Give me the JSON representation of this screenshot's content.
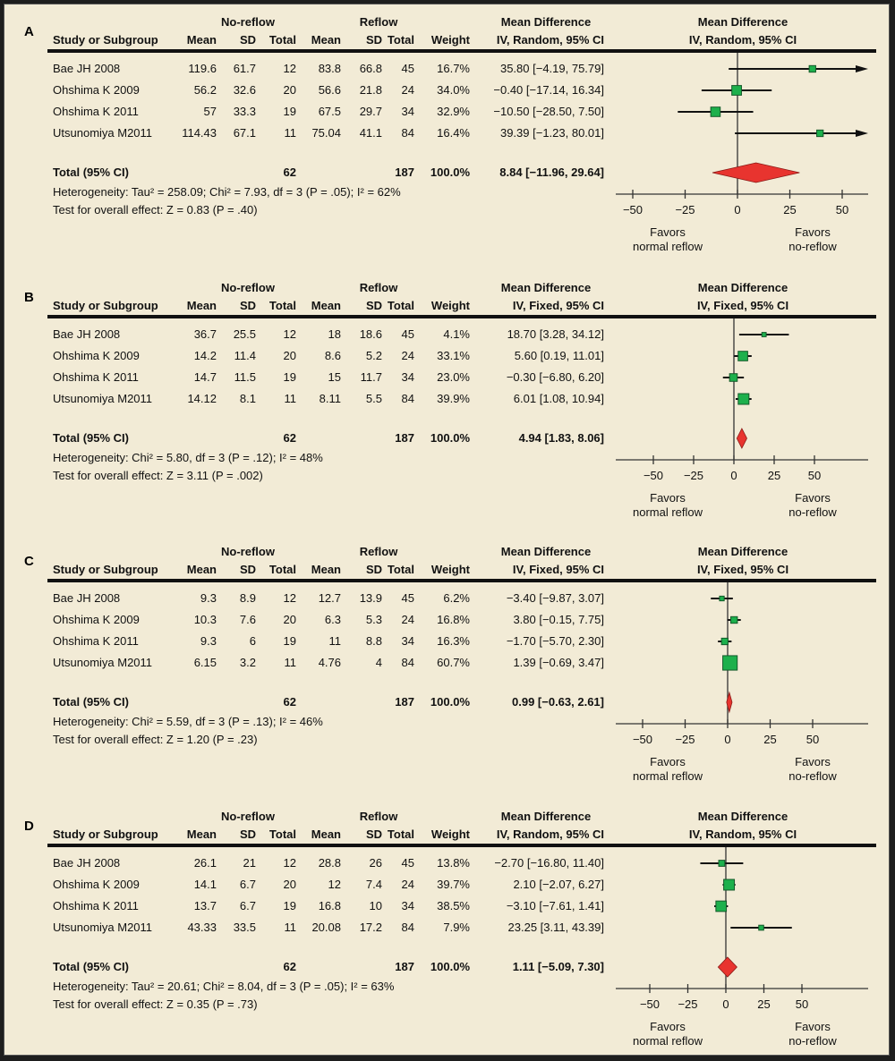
{
  "headers": {
    "group1": "No-reflow",
    "group2": "Reflow",
    "study": "Study or Subgroup",
    "mean": "Mean",
    "sd": "SD",
    "total": "Total",
    "weight": "Weight",
    "md": "Mean Difference",
    "favors_left_1": "Favors",
    "favors_left_2": "normal reflow",
    "favors_right_1": "Favors",
    "favors_right_2": "no-reflow"
  },
  "panels": [
    {
      "letter": "A",
      "method": "IV, Random, 95% CI",
      "rows": [
        {
          "study": "Bae JH 2008",
          "m1": "119.6",
          "sd1": "61.7",
          "n1": "12",
          "m2": "83.8",
          "sd2": "66.8",
          "n2": "45",
          "w": "16.7%",
          "ci": "35.80 [−4.19, 75.79]"
        },
        {
          "study": "Ohshima K 2009",
          "m1": "56.2",
          "sd1": "32.6",
          "n1": "20",
          "m2": "56.6",
          "sd2": "21.8",
          "n2": "24",
          "w": "34.0%",
          "ci": "−0.40 [−17.14, 16.34]"
        },
        {
          "study": "Ohshima K 2011",
          "m1": "57",
          "sd1": "33.3",
          "n1": "19",
          "m2": "67.5",
          "sd2": "29.7",
          "n2": "34",
          "w": "32.9%",
          "ci": "−10.50 [−28.50, 7.50]"
        },
        {
          "study": "Utsunomiya M2011",
          "m1": "114.43",
          "sd1": "67.1",
          "n1": "11",
          "m2": "75.04",
          "sd2": "41.1",
          "n2": "84",
          "w": "16.4%",
          "ci": "39.39 [−1.23, 80.01]"
        }
      ],
      "total": {
        "label": "Total (95% CI)",
        "n1": "62",
        "n2": "187",
        "w": "100.0%",
        "ci": "8.84 [−11.96, 29.64]"
      },
      "heterogeneity": "Heterogeneity: Tau² = 258.09; Chi² = 7.93, df = 3 (P = .05); I² = 62%",
      "overall": "Test for overall effect: Z = 0.83 (P = .40)"
    },
    {
      "letter": "B",
      "method": "IV, Fixed, 95% CI",
      "rows": [
        {
          "study": "Bae JH 2008",
          "m1": "36.7",
          "sd1": "25.5",
          "n1": "12",
          "m2": "18",
          "sd2": "18.6",
          "n2": "45",
          "w": "4.1%",
          "ci": "18.70 [3.28, 34.12]"
        },
        {
          "study": "Ohshima K 2009",
          "m1": "14.2",
          "sd1": "11.4",
          "n1": "20",
          "m2": "8.6",
          "sd2": "5.2",
          "n2": "24",
          "w": "33.1%",
          "ci": "5.60 [0.19, 11.01]"
        },
        {
          "study": "Ohshima K 2011",
          "m1": "14.7",
          "sd1": "11.5",
          "n1": "19",
          "m2": "15",
          "sd2": "11.7",
          "n2": "34",
          "w": "23.0%",
          "ci": "−0.30 [−6.80, 6.20]"
        },
        {
          "study": "Utsunomiya M2011",
          "m1": "14.12",
          "sd1": "8.1",
          "n1": "11",
          "m2": "8.11",
          "sd2": "5.5",
          "n2": "84",
          "w": "39.9%",
          "ci": "6.01 [1.08, 10.94]"
        }
      ],
      "total": {
        "label": "Total (95% CI)",
        "n1": "62",
        "n2": "187",
        "w": "100.0%",
        "ci": "4.94 [1.83, 8.06]"
      },
      "heterogeneity": "Heterogeneity: Chi² = 5.80, df = 3 (P = .12); I² = 48%",
      "overall": "Test for overall effect: Z = 3.11 (P = .002)"
    },
    {
      "letter": "C",
      "method": "IV, Fixed, 95% CI",
      "rows": [
        {
          "study": "Bae JH 2008",
          "m1": "9.3",
          "sd1": "8.9",
          "n1": "12",
          "m2": "12.7",
          "sd2": "13.9",
          "n2": "45",
          "w": "6.2%",
          "ci": "−3.40 [−9.87, 3.07]"
        },
        {
          "study": "Ohshima K 2009",
          "m1": "10.3",
          "sd1": "7.6",
          "n1": "20",
          "m2": "6.3",
          "sd2": "5.3",
          "n2": "24",
          "w": "16.8%",
          "ci": "3.80 [−0.15, 7.75]"
        },
        {
          "study": "Ohshima K 2011",
          "m1": "9.3",
          "sd1": "6",
          "n1": "19",
          "m2": "11",
          "sd2": "8.8",
          "n2": "34",
          "w": "16.3%",
          "ci": "−1.70 [−5.70, 2.30]"
        },
        {
          "study": "Utsunomiya M2011",
          "m1": "6.15",
          "sd1": "3.2",
          "n1": "11",
          "m2": "4.76",
          "sd2": "4",
          "n2": "84",
          "w": "60.7%",
          "ci": "1.39 [−0.69, 3.47]"
        }
      ],
      "total": {
        "label": "Total (95% CI)",
        "n1": "62",
        "n2": "187",
        "w": "100.0%",
        "ci": "0.99 [−0.63, 2.61]"
      },
      "heterogeneity": "Heterogeneity: Chi² = 5.59, df = 3 (P = .13); I² = 46%",
      "overall": "Test for overall effect: Z = 1.20 (P = .23)"
    },
    {
      "letter": "D",
      "method": "IV, Random, 95% CI",
      "rows": [
        {
          "study": "Bae JH 2008",
          "m1": "26.1",
          "sd1": "21",
          "n1": "12",
          "m2": "28.8",
          "sd2": "26",
          "n2": "45",
          "w": "13.8%",
          "ci": "−2.70 [−16.80, 11.40]"
        },
        {
          "study": "Ohshima K 2009",
          "m1": "14.1",
          "sd1": "6.7",
          "n1": "20",
          "m2": "12",
          "sd2": "7.4",
          "n2": "24",
          "w": "39.7%",
          "ci": "2.10 [−2.07, 6.27]"
        },
        {
          "study": "Ohshima K 2011",
          "m1": "13.7",
          "sd1": "6.7",
          "n1": "19",
          "m2": "16.8",
          "sd2": "10",
          "n2": "34",
          "w": "38.5%",
          "ci": "−3.10 [−7.61, 1.41]"
        },
        {
          "study": "Utsunomiya M2011",
          "m1": "43.33",
          "sd1": "33.5",
          "n1": "11",
          "m2": "20.08",
          "sd2": "17.2",
          "n2": "84",
          "w": "7.9%",
          "ci": "23.25 [3.11, 43.39]"
        }
      ],
      "total": {
        "label": "Total (95% CI)",
        "n1": "62",
        "n2": "187",
        "w": "100.0%",
        "ci": "1.11 [−5.09, 7.30]"
      },
      "heterogeneity": "Heterogeneity: Tau² = 20.61; Chi² = 8.04, df = 3 (P = .05); I² = 63%",
      "overall": "Test for overall effect: Z = 0.35 (P = .73)"
    }
  ],
  "chart_data": [
    {
      "type": "forest",
      "panel": "A",
      "xticks": [
        -50,
        -25,
        0,
        25,
        50
      ],
      "xlim": [
        -60,
        60
      ],
      "studies": [
        {
          "est": 35.8,
          "lo": -4.19,
          "hi": 75.79,
          "weight": 16.7
        },
        {
          "est": -0.4,
          "lo": -17.14,
          "hi": 16.34,
          "weight": 34.0
        },
        {
          "est": -10.5,
          "lo": -28.5,
          "hi": 7.5,
          "weight": 32.9
        },
        {
          "est": 39.39,
          "lo": -1.23,
          "hi": 80.01,
          "weight": 16.4
        }
      ],
      "pooled": {
        "est": 8.84,
        "lo": -11.96,
        "hi": 29.64
      }
    },
    {
      "type": "forest",
      "panel": "B",
      "xticks": [
        -50,
        -25,
        0,
        25,
        50
      ],
      "xlim": [
        -75,
        80
      ],
      "studies": [
        {
          "est": 18.7,
          "lo": 3.28,
          "hi": 34.12,
          "weight": 4.1
        },
        {
          "est": 5.6,
          "lo": 0.19,
          "hi": 11.01,
          "weight": 33.1
        },
        {
          "est": -0.3,
          "lo": -6.8,
          "hi": 6.2,
          "weight": 23.0
        },
        {
          "est": 6.01,
          "lo": 1.08,
          "hi": 10.94,
          "weight": 39.9
        }
      ],
      "pooled": {
        "est": 4.94,
        "lo": 1.83,
        "hi": 8.06
      }
    },
    {
      "type": "forest",
      "panel": "C",
      "xticks": [
        -50,
        -25,
        0,
        25,
        50
      ],
      "xlim": [
        -70,
        80
      ],
      "studies": [
        {
          "est": -3.4,
          "lo": -9.87,
          "hi": 3.07,
          "weight": 6.2
        },
        {
          "est": 3.8,
          "lo": -0.15,
          "hi": 7.75,
          "weight": 16.8
        },
        {
          "est": -1.7,
          "lo": -5.7,
          "hi": 2.3,
          "weight": 16.3
        },
        {
          "est": 1.39,
          "lo": -0.69,
          "hi": 3.47,
          "weight": 60.7
        }
      ],
      "pooled": {
        "est": 0.99,
        "lo": -0.63,
        "hi": 2.61
      }
    },
    {
      "type": "forest",
      "panel": "D",
      "xticks": [
        -50,
        -25,
        0,
        25,
        50
      ],
      "xlim": [
        -75,
        90
      ],
      "studies": [
        {
          "est": -2.7,
          "lo": -16.8,
          "hi": 11.4,
          "weight": 13.8
        },
        {
          "est": 2.1,
          "lo": -2.07,
          "hi": 6.27,
          "weight": 39.7
        },
        {
          "est": -3.1,
          "lo": -7.61,
          "hi": 1.41,
          "weight": 38.5
        },
        {
          "est": 23.25,
          "lo": 3.11,
          "hi": 43.39,
          "weight": 7.9
        }
      ],
      "pooled": {
        "est": 1.11,
        "lo": -5.09,
        "hi": 7.3
      }
    }
  ],
  "colors": {
    "background": "#f2ebd6",
    "square": "#1db04c",
    "diamond": "#e8342f",
    "line": "#111111"
  }
}
